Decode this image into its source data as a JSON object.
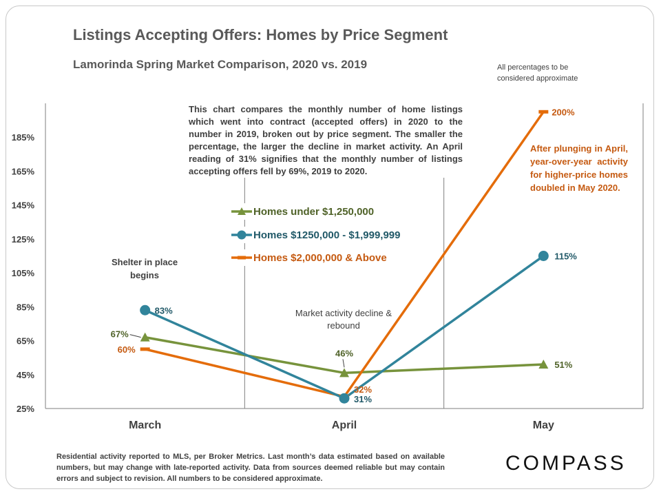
{
  "title": "Listings Accepting Offers: Homes by Price Segment",
  "subtitle": "Lamorinda Spring Market Comparison,  2020 vs. 2019",
  "approx_note": "All percentages to be considered approximate",
  "description": "This chart compares the monthly number of home listings which went into contract (accepted offers) in 2020 to the number in 2019, broken out by price segment. The smaller the percentage, the larger the decline in market activity. An April reading of 31% signifies that the monthly number of listings accepting offers fell by 69%, 2019 to 2020.",
  "orange_note": "After plunging in April, year-over-year activity for higher-price homes doubled in May 2020.",
  "shelter_note": "Shelter in place begins",
  "market_note": "Market activity decline & rebound",
  "footer": "Residential activity reported to MLS, per Broker Metrics. Last month’s data estimated based on available numbers, but may change with late-reported activity. Data from sources deemed reliable but may contain errors and subject to revision. All numbers to be considered approximate.",
  "logo": "COMPASS",
  "colors": {
    "green": "#77933c",
    "teal": "#31849b",
    "orange": "#e46c0a",
    "green_label": "#4f6228",
    "teal_label": "#215968",
    "orange_label": "#c55a11"
  },
  "chart_data": {
    "type": "line",
    "categories": [
      "March",
      "April",
      "May"
    ],
    "ylim": [
      25,
      205
    ],
    "yticks": [
      "25%",
      "45%",
      "65%",
      "85%",
      "105%",
      "125%",
      "145%",
      "165%",
      "185%"
    ],
    "series": [
      {
        "name": "Homes under $1,250,000",
        "marker": "triangle",
        "color": "#77933c",
        "label_color": "#4f6228",
        "values": [
          67,
          46,
          51
        ],
        "labels": [
          "67%",
          "46%",
          "51%"
        ]
      },
      {
        "name": "Homes $1250,000 - $1,999,999",
        "marker": "circle",
        "color": "#31849b",
        "label_color": "#215968",
        "values": [
          83,
          31,
          115
        ],
        "labels": [
          "83%",
          "31%",
          "115%"
        ]
      },
      {
        "name": "Homes $2,000,000 & Above",
        "marker": "dash",
        "color": "#e46c0a",
        "label_color": "#c55a11",
        "values": [
          60,
          32,
          200
        ],
        "labels": [
          "60%",
          "32%",
          "200%"
        ]
      }
    ]
  }
}
